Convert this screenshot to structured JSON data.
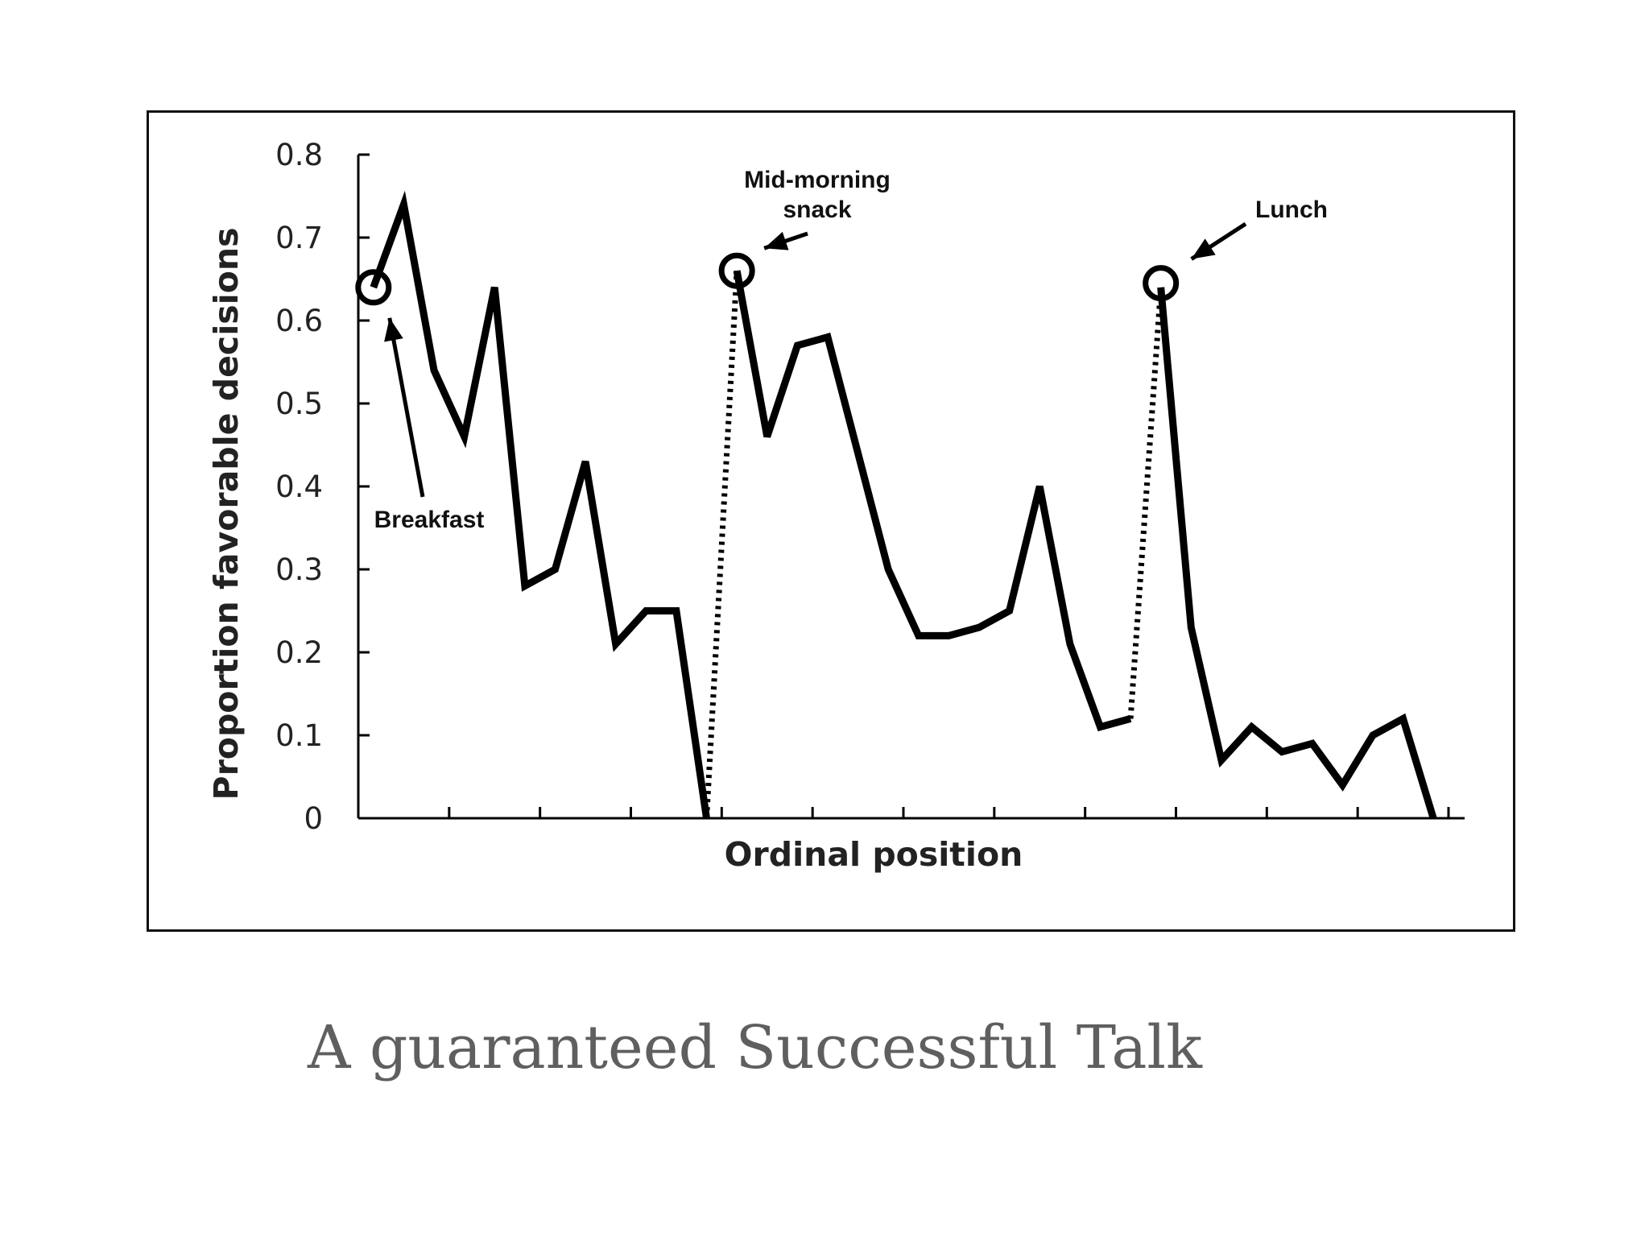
{
  "caption": "A guaranteed Successful Talk",
  "chart_data": {
    "type": "line",
    "title": "",
    "xlabel": "Ordinal position",
    "ylabel": "Proportion favorable decisions",
    "ylim": [
      0,
      0.8
    ],
    "yticks": [
      "0",
      "0.1",
      "0.2",
      "0.3",
      "0.4",
      "0.5",
      "0.6",
      "0.7",
      "0.8"
    ],
    "xlim": [
      0,
      36
    ],
    "grid": false,
    "line_color": "#000000",
    "series": [
      {
        "style": "solid",
        "x": [
          0.5,
          1.5,
          2.5,
          3.5,
          4.5,
          5.5,
          6.5,
          7.5,
          8.5,
          9.5,
          10.5,
          11.5
        ],
        "values": [
          0.64,
          0.74,
          0.54,
          0.46,
          0.64,
          0.28,
          0.3,
          0.43,
          0.21,
          0.25,
          0.25,
          0.0
        ]
      },
      {
        "style": "dotted",
        "x": [
          11.5,
          12.5
        ],
        "values": [
          0.0,
          0.66
        ]
      },
      {
        "style": "solid",
        "x": [
          12.5,
          13.5,
          14.5,
          15.5,
          16.5,
          17.5,
          18.5,
          19.5,
          20.5,
          21.5,
          22.5,
          23.5,
          24.5,
          25.5
        ],
        "values": [
          0.66,
          0.46,
          0.57,
          0.58,
          0.44,
          0.3,
          0.22,
          0.22,
          0.23,
          0.25,
          0.4,
          0.21,
          0.11,
          0.12
        ]
      },
      {
        "style": "dotted",
        "x": [
          25.5,
          26.5
        ],
        "values": [
          0.12,
          0.64
        ]
      },
      {
        "style": "solid",
        "x": [
          26.5,
          27.5,
          28.5,
          29.5,
          30.5,
          31.5,
          32.5,
          33.5,
          34.5,
          35.5
        ],
        "values": [
          0.64,
          0.23,
          0.07,
          0.11,
          0.08,
          0.09,
          0.04,
          0.1,
          0.12,
          0.0
        ]
      }
    ],
    "circled_points": [
      {
        "x": 0.5,
        "value": 0.64
      },
      {
        "x": 12.5,
        "value": 0.66
      },
      {
        "x": 26.5,
        "value": 0.645
      }
    ],
    "annotations": [
      {
        "text": "Breakfast",
        "point_x": 0.5,
        "point_value": 0.64
      },
      {
        "text": "Mid-morning",
        "text2": "snack",
        "point_x": 12.5,
        "point_value": 0.66
      },
      {
        "text": "Lunch",
        "point_x": 26.5,
        "point_value": 0.645
      }
    ]
  }
}
